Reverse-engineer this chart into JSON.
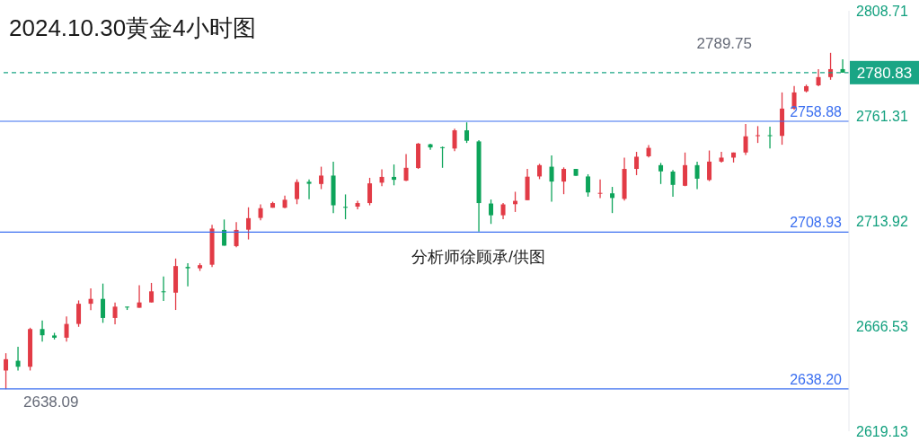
{
  "chart_data": {
    "type": "candlestick",
    "title": "2024.10.30黄金4小时图",
    "categories": [
      null,
      null,
      null,
      null,
      null,
      null,
      null,
      null,
      null,
      null,
      null,
      null,
      null,
      null,
      null,
      null,
      null,
      null,
      null,
      null,
      null,
      null,
      null,
      null,
      null,
      null,
      null,
      null,
      null,
      null,
      null,
      null,
      null,
      null,
      null,
      null,
      null,
      null,
      null,
      null,
      null,
      null,
      null,
      null,
      null,
      null,
      null,
      null,
      null,
      null,
      null,
      null,
      null,
      null,
      null,
      null,
      null,
      null,
      null,
      null,
      null,
      null,
      null,
      null,
      null,
      null,
      null,
      null,
      null,
      null
    ],
    "ohlc": [
      [
        2646.5,
        2654.3,
        2638.09,
        2651.6
      ],
      [
        2650.9,
        2657.2,
        2646.5,
        2648.2
      ],
      [
        2648.2,
        2665.8,
        2646.5,
        2665.2
      ],
      [
        2665.2,
        2669.1,
        2659.5,
        2662.4
      ],
      [
        2662.3,
        2663.5,
        2660.5,
        2661.3
      ],
      [
        2661.3,
        2670.9,
        2659.5,
        2667.5
      ],
      [
        2667.5,
        2678.1,
        2666.2,
        2676.6
      ],
      [
        2676.6,
        2683.5,
        2673.7,
        2678.8
      ],
      [
        2678.8,
        2685.7,
        2668.0,
        2670.2
      ],
      [
        2670.2,
        2677.2,
        2667.3,
        2675.3
      ],
      [
        2675.3,
        2675.3,
        2673.8,
        2674.9
      ],
      [
        2674.8,
        2685.0,
        2674.8,
        2677.2
      ],
      [
        2677.2,
        2686.0,
        2677.2,
        2682.2
      ],
      [
        2682.2,
        2688.9,
        2677.9,
        2681.8
      ],
      [
        2681.6,
        2697.0,
        2673.8,
        2693.6
      ],
      [
        2693.2,
        2694.9,
        2684.5,
        2692.6
      ],
      [
        2692.6,
        2694.9,
        2691.4,
        2694.0
      ],
      [
        2694.2,
        2712.2,
        2693.2,
        2710.5
      ],
      [
        2709.9,
        2714.6,
        2702.8,
        2702.8
      ],
      [
        2702.6,
        2713.4,
        2702.1,
        2709.9
      ],
      [
        2710.0,
        2720.1,
        2705.6,
        2715.2
      ],
      [
        2715.3,
        2721.4,
        2714.2,
        2719.7
      ],
      [
        2719.9,
        2722.6,
        2719.9,
        2722.0
      ],
      [
        2719.9,
        2725.4,
        2719.7,
        2723.5
      ],
      [
        2723.8,
        2732.7,
        2721.5,
        2731.5
      ],
      [
        2731.6,
        2732.7,
        2723.7,
        2730.7
      ],
      [
        2730.6,
        2738.4,
        2728.3,
        2734.4
      ],
      [
        2734.4,
        2740.7,
        2717.5,
        2721.0
      ],
      [
        2720.3,
        2725.9,
        2714.7,
        2720.0
      ],
      [
        2720.4,
        2723.0,
        2719.2,
        2722.0
      ],
      [
        2722.0,
        2733.4,
        2721.0,
        2730.9
      ],
      [
        2731.2,
        2737.2,
        2729.6,
        2733.8
      ],
      [
        2733.8,
        2739.4,
        2730.0,
        2732.5
      ],
      [
        2732.1,
        2744.1,
        2731.9,
        2737.9
      ],
      [
        2737.8,
        2749.1,
        2737.4,
        2748.8
      ],
      [
        2748.5,
        2748.8,
        2746.0,
        2747.1
      ],
      [
        2747.2,
        2747.5,
        2737.9,
        2746.9
      ],
      [
        2746.6,
        2755.5,
        2745.4,
        2754.8
      ],
      [
        2754.8,
        2758.4,
        2749.1,
        2750.1
      ],
      [
        2749.8,
        2750.4,
        2709.2,
        2722.0
      ],
      [
        2721.8,
        2723.6,
        2712.6,
        2716.5
      ],
      [
        2716.5,
        2722.0,
        2714.7,
        2721.4
      ],
      [
        2721.5,
        2727.1,
        2718.0,
        2723.0
      ],
      [
        2723.3,
        2737.4,
        2723.3,
        2733.9
      ],
      [
        2734.0,
        2739.7,
        2732.8,
        2739.1
      ],
      [
        2738.4,
        2743.5,
        2722.6,
        2731.7
      ],
      [
        2731.7,
        2738.1,
        2726.0,
        2737.4
      ],
      [
        2737.4,
        2737.4,
        2734.3,
        2734.3
      ],
      [
        2734.0,
        2735.0,
        2724.9,
        2726.8
      ],
      [
        2726.4,
        2732.7,
        2724.3,
        2726.6
      ],
      [
        2726.4,
        2729.3,
        2717.5,
        2724.3
      ],
      [
        2723.9,
        2742.5,
        2723.1,
        2737.4
      ],
      [
        2737.4,
        2745.1,
        2734.6,
        2742.9
      ],
      [
        2743.1,
        2748.2,
        2742.6,
        2746.9
      ],
      [
        2739.1,
        2740.1,
        2730.6,
        2736.3
      ],
      [
        2736.2,
        2736.9,
        2724.9,
        2730.2
      ],
      [
        2729.8,
        2744.8,
        2729.6,
        2739.1
      ],
      [
        2739.1,
        2740.7,
        2728.3,
        2733.0
      ],
      [
        2732.4,
        2745.7,
        2731.9,
        2740.7
      ],
      [
        2740.7,
        2745.1,
        2740.3,
        2742.5
      ],
      [
        2742.5,
        2744.8,
        2740.3,
        2744.8
      ],
      [
        2744.8,
        2757.7,
        2743.7,
        2752.1
      ],
      [
        2752.2,
        2756.7,
        2749.1,
        2752.6
      ],
      [
        2752.6,
        2756.5,
        2746.6,
        2752.3
      ],
      [
        2752.3,
        2771.9,
        2748.3,
        2764.6
      ],
      [
        2764.6,
        2774.8,
        2764.0,
        2771.9
      ],
      [
        2772.4,
        2775.4,
        2771.9,
        2774.7
      ],
      [
        2775.1,
        2782.4,
        2774.7,
        2778.8
      ],
      [
        2778.8,
        2789.75,
        2777.6,
        2782.4
      ],
      [
        2782.4,
        2786.8,
        2780.83,
        2780.83
      ]
    ],
    "colors": [
      "#e23b46",
      "#0da45a",
      "#e23b46",
      "#0da45a",
      "#0da45a",
      "#e23b46",
      "#e23b46",
      "#e23b46",
      "#0da45a",
      "#e23b46",
      "#0da45a",
      "#e23b46",
      "#e23b46",
      "#0da45a",
      "#e23b46",
      "#0da45a",
      "#e23b46",
      "#e23b46",
      "#0da45a",
      "#e23b46",
      "#e23b46",
      "#e23b46",
      "#e23b46",
      "#e23b46",
      "#e23b46",
      "#0da45a",
      "#e23b46",
      "#0da45a",
      "#0da45a",
      "#e23b46",
      "#e23b46",
      "#e23b46",
      "#0da45a",
      "#e23b46",
      "#e23b46",
      "#0da45a",
      "#0da45a",
      "#e23b46",
      "#0da45a",
      "#0da45a",
      "#0da45a",
      "#e23b46",
      "#e23b46",
      "#e23b46",
      "#e23b46",
      "#0da45a",
      "#e23b46",
      "#0da45a",
      "#0da45a",
      "#e23b46",
      "#0da45a",
      "#e23b46",
      "#e23b46",
      "#e23b46",
      "#0da45a",
      "#0da45a",
      "#e23b46",
      "#0da45a",
      "#e23b46",
      "#e23b46",
      "#e23b46",
      "#e23b46",
      "#e23b46",
      "#0da45a",
      "#e23b46",
      "#e23b46",
      "#e23b46",
      "#e23b46",
      "#e23b46",
      "#0da45a"
    ],
    "ylim": [
      2619.13,
      2808.71
    ],
    "yticks": [
      2619.13,
      2666.53,
      2713.92,
      2761.31,
      2808.71
    ],
    "tick_labels": "y",
    "ref_lines": [
      {
        "axis": "y",
        "value": 2758.88,
        "label": "2758.88",
        "color": "#3b6ff0",
        "line_style": "solid"
      },
      {
        "axis": "y",
        "value": 2708.93,
        "label": "2708.93",
        "color": "#3b6ff0",
        "line_style": "solid"
      },
      {
        "axis": "y",
        "value": 2638.2,
        "label": "2638.20",
        "color": "#3b6ff0",
        "line_style": "solid"
      },
      {
        "axis": "y",
        "value": 2780.83,
        "label": "2780.83",
        "color": "#1aa585",
        "line_style": "dashed"
      }
    ],
    "annotations": [
      "2789.75",
      "2638.09",
      "分析师徐顾承/供图"
    ]
  }
}
